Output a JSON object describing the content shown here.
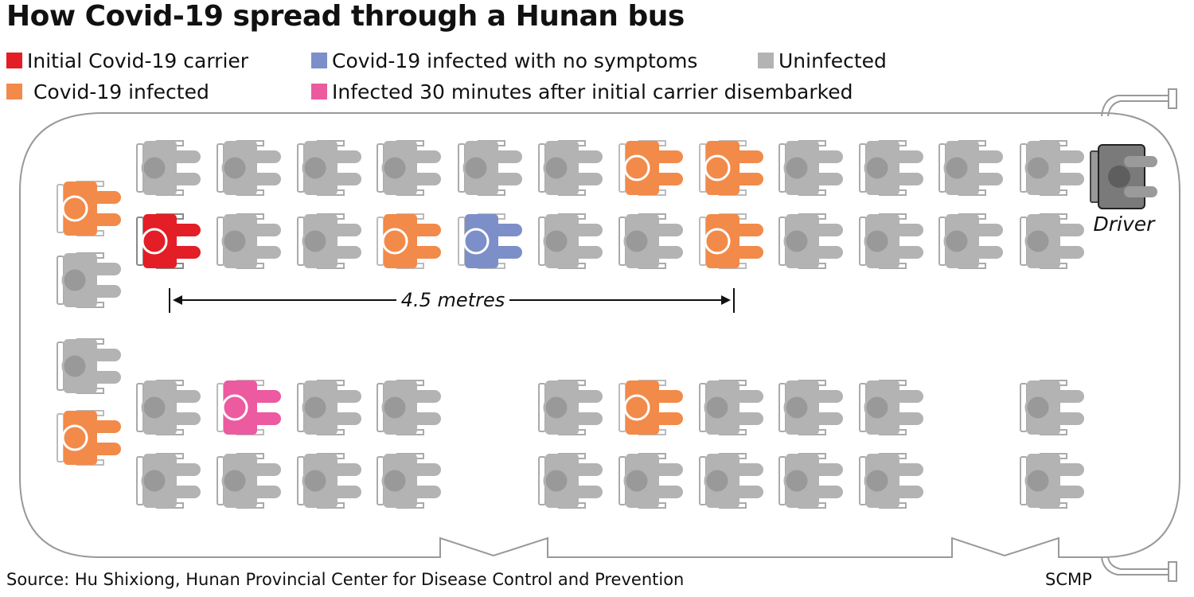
{
  "title": "How Covid-19 spread through a Hunan bus",
  "legend": [
    {
      "label": "Initial Covid-19 carrier",
      "color": "#e31e26"
    },
    {
      "label": "Covid-19 infected with no symptoms",
      "color": "#7d8fc8"
    },
    {
      "label": "Uninfected",
      "color": "#b3b3b3"
    },
    {
      "label": " Covid-19 infected",
      "color": "#f28a4a"
    },
    {
      "label": "Infected 30 minutes after initial carrier disembarked",
      "color": "#ec5aa0"
    }
  ],
  "colors": {
    "carrier": "#e31e26",
    "infected": "#f28a4a",
    "asymptomatic": "#7d8fc8",
    "late": "#ec5aa0",
    "uninfected": "#b3b3b3",
    "driver": "#7a7a7a",
    "outline": "#999999"
  },
  "driver_label": "Driver",
  "distance_label": "4.5 metres",
  "source": "Source: Hu Shixiong, Hunan Provincial Center for Disease Control and Prevention",
  "credit": "SCMP",
  "seats": {
    "front_row_a": [
      "u",
      "u",
      "u",
      "u",
      "u",
      "u",
      "i",
      "i",
      "u",
      "u",
      "u",
      "u"
    ],
    "front_row_b": [
      "c",
      "u",
      "u",
      "i",
      "a",
      "u",
      "u",
      "i",
      "u",
      "u",
      "u",
      "u"
    ],
    "back_row_a": [
      "u",
      "l",
      "u",
      "u",
      "-",
      "u",
      "i",
      "u",
      "u",
      "u",
      "-",
      "u"
    ],
    "back_row_b": [
      "u",
      "u",
      "u",
      "u",
      "-",
      "u",
      "u",
      "u",
      "u",
      "u",
      "-",
      "u"
    ],
    "rear_bench": [
      "i",
      "u",
      "u",
      "i"
    ]
  }
}
